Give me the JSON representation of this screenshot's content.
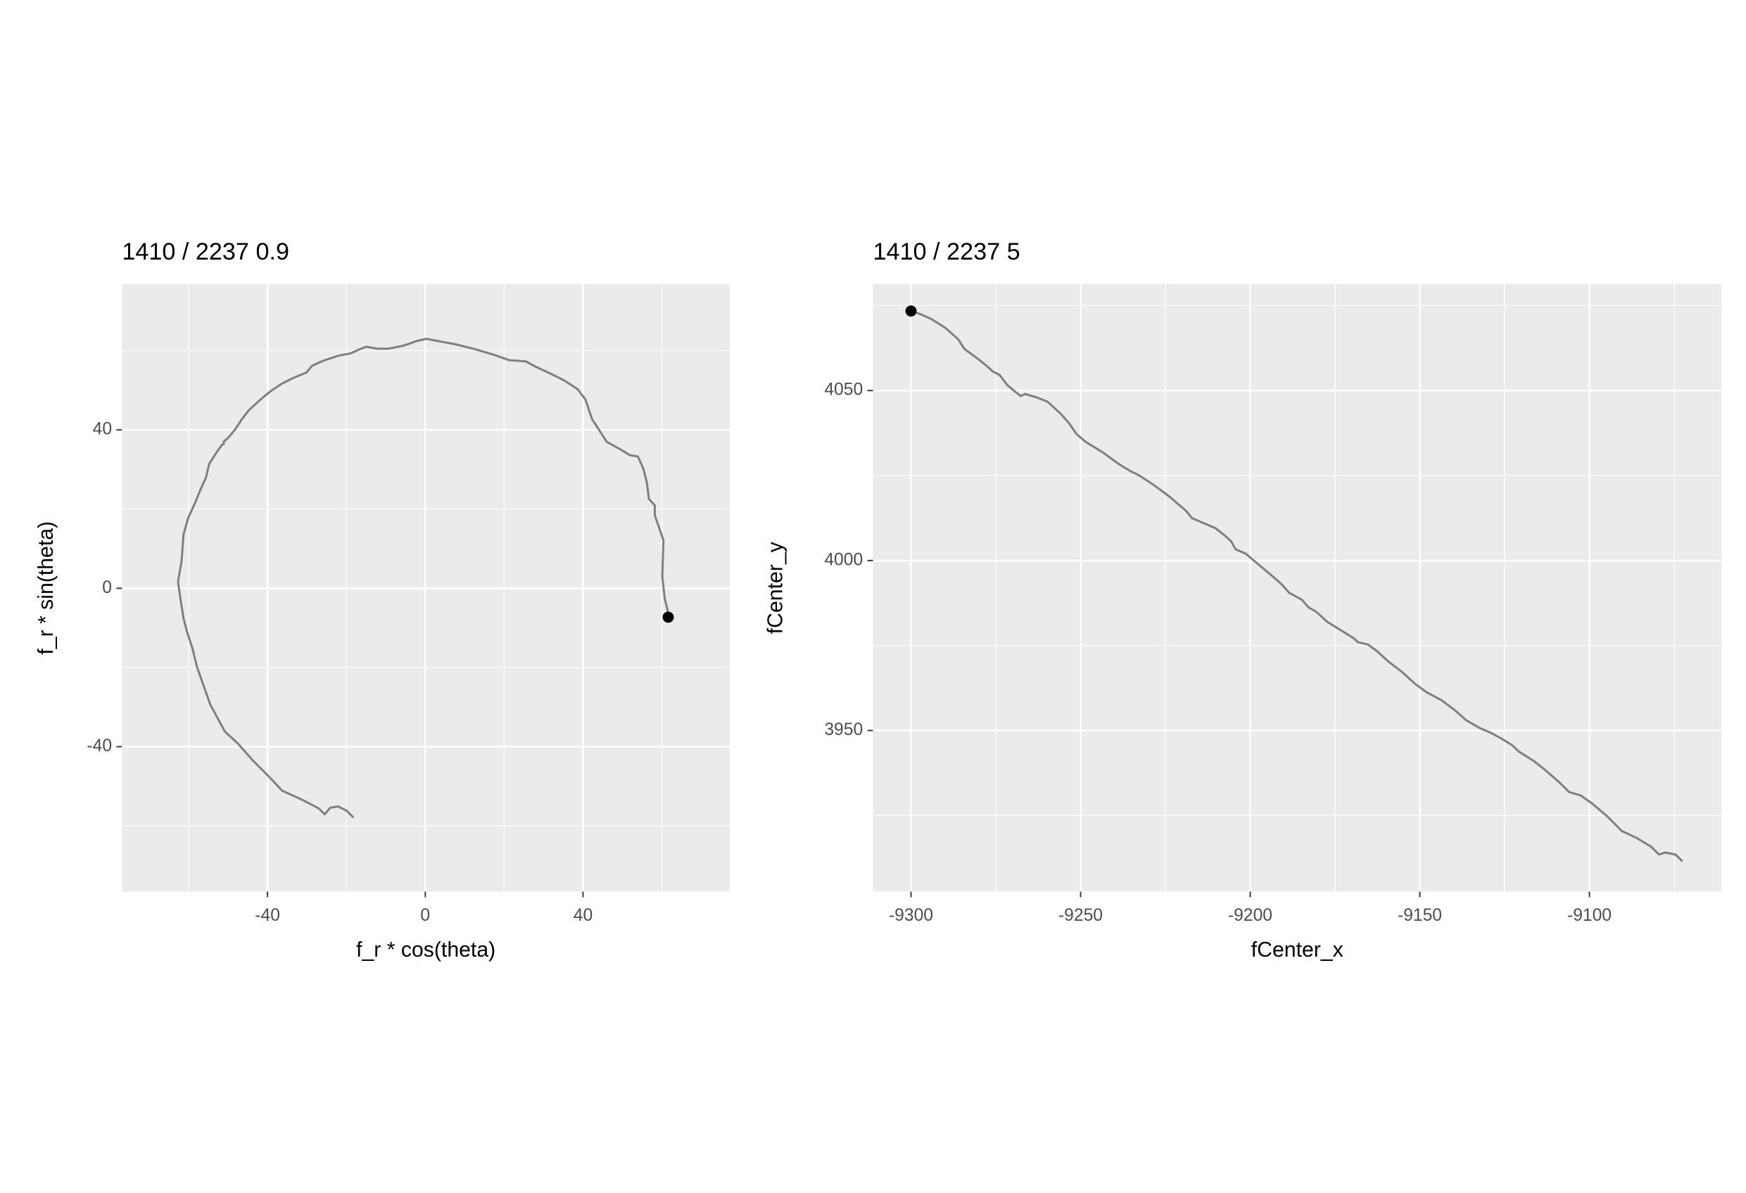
{
  "chart_data": [
    {
      "type": "line",
      "title": "1410 / 2237 0.9",
      "xlabel": "f_r * cos(theta)",
      "ylabel": "f_r * sin(theta)",
      "color": "#7f7f7f",
      "x": [
        -18.2,
        -19.9,
        -22.1,
        -24.1,
        -25.5,
        -27.0,
        -31.2,
        -36.3,
        -39.7,
        -43.7,
        -47.7,
        -50.8,
        -54.5,
        -57.9,
        -59.0,
        -60.4,
        -61.3,
        -62.1,
        -62.7,
        -61.8,
        -61.3,
        -60.1,
        -58.4,
        -57.0,
        -55.6,
        -54.8,
        -53.0,
        -51.6,
        -51.1,
        -51.1,
        -49.9,
        -48.2,
        -46.5,
        -44.8,
        -42.3,
        -40.3,
        -38.9,
        -36.3,
        -33.5,
        -30.1,
        -28.7,
        -25.5,
        -21.8,
        -19.0,
        -17.0,
        -15.0,
        -12.2,
        -9.4,
        -5.4,
        -2.3,
        0.3,
        3.4,
        7.7,
        12.2,
        17.3,
        21.3,
        25.5,
        28.1,
        31.8,
        35.2,
        38.6,
        40.6,
        42.3,
        44.0,
        46.0,
        49.6,
        51.9,
        53.9,
        55.3,
        56.2,
        56.7,
        58.2,
        58.2,
        59.6,
        60.4,
        60.1,
        60.7,
        61.6,
        61.6
      ],
      "y": [
        -57.9,
        -56.2,
        -55.1,
        -55.4,
        -57.1,
        -55.6,
        -53.4,
        -51.1,
        -47.5,
        -43.5,
        -39.0,
        -36.2,
        -29.4,
        -19.8,
        -15.3,
        -11.0,
        -7.6,
        -2.5,
        1.7,
        6.8,
        13.6,
        17.8,
        21.5,
        24.9,
        28.0,
        31.4,
        34.2,
        36.2,
        36.4,
        37.0,
        38.1,
        40.1,
        42.7,
        44.9,
        47.2,
        48.9,
        50.0,
        51.7,
        53.1,
        54.5,
        56.2,
        57.6,
        58.8,
        59.3,
        60.2,
        61.0,
        60.5,
        60.5,
        61.3,
        62.4,
        63.0,
        62.4,
        61.6,
        60.5,
        59.0,
        57.6,
        57.3,
        55.9,
        54.2,
        52.5,
        50.3,
        47.7,
        42.7,
        40.1,
        37.0,
        35.0,
        33.6,
        33.3,
        30.2,
        26.6,
        22.6,
        20.9,
        18.4,
        14.4,
        12.1,
        3.1,
        -2.5,
        -6.2,
        -7.3
      ],
      "marker": {
        "x": 61.6,
        "y": -7.3,
        "color": "#000000"
      },
      "xlim": [
        -76.9,
        77.2
      ],
      "ylim": [
        -76.6,
        76.8
      ],
      "xticks": [
        -40,
        0,
        40
      ],
      "yticks": [
        -40,
        0,
        40
      ],
      "xminor": [
        -60,
        -20,
        20,
        60
      ],
      "yminor": [
        -60,
        -20,
        20,
        60
      ],
      "grid": true
    },
    {
      "type": "line",
      "title": "1410 / 2237 5",
      "xlabel": "fCenter_x",
      "ylabel": "fCenter_y",
      "color": "#7f7f7f",
      "x": [
        -9300.0,
        -9297.0,
        -9294.1,
        -9289.8,
        -9286.1,
        -9284.2,
        -9280.5,
        -9277.6,
        -9275.9,
        -9273.9,
        -9271.6,
        -9269.3,
        -9267.7,
        -9266.3,
        -9263.0,
        -9259.7,
        -9255.8,
        -9253.5,
        -9251.2,
        -9248.5,
        -9243.6,
        -9238.6,
        -9235.3,
        -9232.7,
        -9228.7,
        -9223.8,
        -9218.8,
        -9217.2,
        -9214.2,
        -9210.2,
        -9207.3,
        -9205.6,
        -9204.3,
        -9201.3,
        -9197.4,
        -9193.1,
        -9190.8,
        -9188.5,
        -9184.8,
        -9182.8,
        -9180.5,
        -9177.2,
        -9172.3,
        -9169.3,
        -9168.3,
        -9165.3,
        -9162.7,
        -9159.4,
        -9155.1,
        -9151.5,
        -9147.9,
        -9143.6,
        -9139.6,
        -9136.3,
        -9132.3,
        -9129.0,
        -9126.1,
        -9122.8,
        -9120.8,
        -9116.5,
        -9113.2,
        -9108.6,
        -9106.0,
        -9102.6,
        -9099.3,
        -9094.7,
        -9090.4,
        -9086.1,
        -9081.8,
        -9079.5,
        -9077.6,
        -9074.6,
        -9072.6
      ],
      "y": [
        4073.4,
        4072.4,
        4071.1,
        4068.4,
        4065.1,
        4062.2,
        4059.5,
        4057.2,
        4055.6,
        4054.6,
        4051.6,
        4049.7,
        4048.4,
        4049.0,
        4048.0,
        4046.7,
        4043.1,
        4040.5,
        4037.2,
        4034.9,
        4031.9,
        4028.3,
        4026.3,
        4025.0,
        4022.4,
        4018.8,
        4014.5,
        4012.5,
        4011.2,
        4009.5,
        4007.2,
        4005.6,
        4003.3,
        4002.0,
        3998.7,
        3995.1,
        3993.1,
        3990.5,
        3988.5,
        3986.2,
        3984.9,
        3981.9,
        3978.9,
        3977.0,
        3976.0,
        3975.3,
        3973.4,
        3970.4,
        3967.1,
        3963.8,
        3961.2,
        3958.9,
        3955.9,
        3953.0,
        3950.7,
        3949.3,
        3947.7,
        3945.7,
        3943.8,
        3941.1,
        3938.5,
        3934.5,
        3931.9,
        3930.9,
        3928.6,
        3924.7,
        3920.4,
        3918.4,
        3915.8,
        3913.5,
        3914.1,
        3913.5,
        3911.5
      ],
      "marker": {
        "x": -9300.0,
        "y": 4073.4,
        "color": "#000000"
      },
      "xlim": [
        -9311.2,
        -9061.1
      ],
      "ylim": [
        3902.6,
        4081.3
      ],
      "xticks": [
        -9300,
        -9250,
        -9200,
        -9150,
        -9100
      ],
      "yticks": [
        3950,
        4000,
        4050
      ],
      "xminor": [
        -9275,
        -9225,
        -9175,
        -9125,
        -9075
      ],
      "yminor": [
        3925,
        3975,
        4025,
        4075
      ],
      "grid": true
    }
  ]
}
